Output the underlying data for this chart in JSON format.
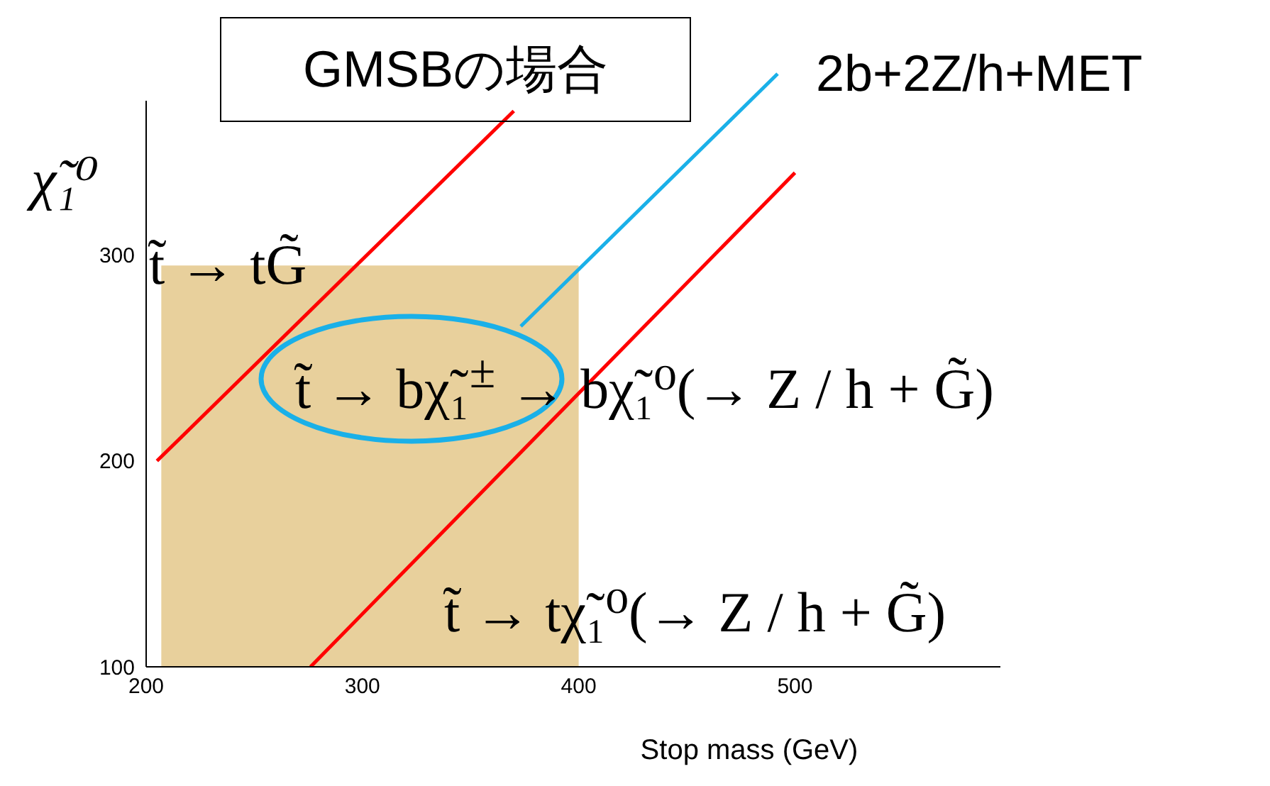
{
  "chart_data": {
    "type": "line",
    "title": "GMSBの場合",
    "xlabel": "Stop mass (GeV)",
    "ylabel": "χ̃₁⁰",
    "xlim": [
      200,
      595
    ],
    "xticks": [
      200,
      300,
      400,
      500
    ],
    "ylim": [
      100,
      375
    ],
    "yticks": [
      100,
      200,
      300
    ],
    "grid": false,
    "marker": "none",
    "series": [
      {
        "type": "area",
        "color": "#e8d09c",
        "x": [
          207,
          400
        ],
        "values": [
          295,
          295
        ]
      },
      {
        "type": "line",
        "color": "#ff0000",
        "x": [
          205,
          370
        ],
        "values": [
          200,
          370
        ]
      },
      {
        "type": "line",
        "color": "#ff0000",
        "x": [
          276,
          500
        ],
        "values": [
          100,
          340
        ]
      }
    ],
    "annotations": [
      "t̃ → tG̃",
      "t̃ → bχ̃₁$^{±}$ → bχ̃₁⁰(→ Z / h + G̃)",
      "t̃ → tχ̃₁⁰(→ Z / h + G̃)",
      "2b+2Z/h+MET"
    ]
  }
}
